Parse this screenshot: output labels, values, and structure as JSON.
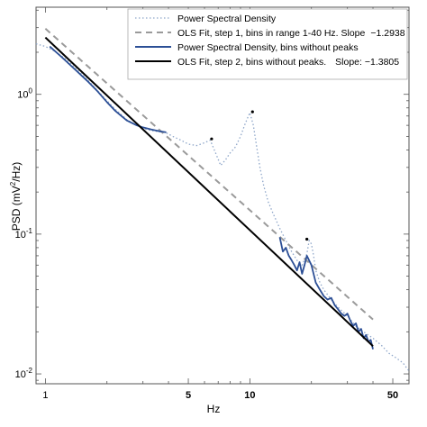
{
  "chart_data": {
    "type": "line",
    "xlabel": "Hz",
    "ylabel_main": "PSD (mV",
    "ylabel_sup": "2",
    "ylabel_end": "/Hz)",
    "x_scale": "log",
    "y_scale": "log",
    "xlim": [
      0.9,
      60
    ],
    "ylim": [
      0.0085,
      4.2
    ],
    "grid": false,
    "legend_position": "top-right",
    "x_ticks": [
      {
        "value": 1,
        "label": "1"
      },
      {
        "value": 5,
        "label": "5"
      },
      {
        "value": 10,
        "label": "10"
      },
      {
        "value": 50,
        "label": "50"
      }
    ],
    "y_ticks": [
      {
        "value": 1,
        "base": "10",
        "exp": "0"
      },
      {
        "value": 0.1,
        "base": "10",
        "exp": "-1"
      },
      {
        "value": 0.01,
        "base": "10",
        "exp": "-2"
      }
    ],
    "series": [
      {
        "name": "Power Spectral Density",
        "style": "dotted",
        "color": "#8ea6c9",
        "x": [
          0.9,
          1.0,
          1.1,
          1.25,
          1.4,
          1.6,
          1.8,
          2.0,
          2.2,
          2.5,
          2.8,
          3.0,
          3.3,
          3.6,
          3.9,
          4.2,
          4.6,
          5.0,
          5.5,
          6.0,
          6.4,
          6.8,
          7.2,
          7.6,
          8.0,
          8.5,
          9.0,
          9.5,
          10.0,
          10.4,
          10.8,
          11.2,
          11.7,
          12.3,
          13.0,
          14.0,
          15.0,
          16.0,
          17.0,
          18.0,
          19.0,
          19.5,
          20.0,
          20.5,
          21.0,
          22.0,
          23.0,
          25.0,
          27.0,
          30.0,
          33.0,
          36.0,
          40.0,
          44.0,
          48.0,
          52.0,
          56.0,
          60.0
        ],
        "y": [
          2.3,
          2.2,
          2.05,
          1.8,
          1.55,
          1.28,
          1.06,
          0.9,
          0.78,
          0.66,
          0.6,
          0.57,
          0.55,
          0.54,
          0.53,
          0.5,
          0.47,
          0.44,
          0.43,
          0.45,
          0.47,
          0.38,
          0.31,
          0.34,
          0.38,
          0.42,
          0.5,
          0.62,
          0.74,
          0.6,
          0.42,
          0.3,
          0.22,
          0.17,
          0.14,
          0.11,
          0.09,
          0.075,
          0.065,
          0.06,
          0.072,
          0.09,
          0.085,
          0.07,
          0.055,
          0.045,
          0.04,
          0.034,
          0.03,
          0.026,
          0.022,
          0.02,
          0.018,
          0.016,
          0.014,
          0.013,
          0.012,
          0.0105
        ]
      },
      {
        "name": "OLS Fit, step 1, bins in range 1-40 Hz. Slope",
        "slope_label": "−1.2938",
        "style": "dashed",
        "color": "#9a9a9a",
        "x": [
          1.0,
          40.0
        ],
        "y": [
          2.95,
          0.0245
        ]
      },
      {
        "name": "Power Spectral Density, bins without peaks",
        "style": "solid",
        "color": "#2c4f96",
        "segments": [
          {
            "x": [
              1.05,
              1.2,
              1.4,
              1.6,
              1.8,
              2.0,
              2.2,
              2.5,
              2.8,
              3.0,
              3.3,
              3.6,
              3.9
            ],
            "y": [
              2.2,
              1.85,
              1.5,
              1.25,
              1.05,
              0.88,
              0.76,
              0.65,
              0.6,
              0.58,
              0.56,
              0.545,
              0.535
            ]
          },
          {
            "x": [
              14.0,
              14.5,
              15.0,
              15.5,
              16.0,
              16.5,
              17.0,
              17.5,
              18.0,
              18.5,
              19.0,
              20.0,
              21.0,
              22.0,
              23.0,
              24.0,
              25.0,
              26.0,
              27.0,
              28.0,
              29.0,
              30.0,
              31.0,
              32.0,
              33.0,
              34.0,
              35.0,
              36.0,
              37.0,
              38.0,
              39.0,
              40.0
            ],
            "y": [
              0.095,
              0.075,
              0.08,
              0.07,
              0.065,
              0.06,
              0.055,
              0.063,
              0.052,
              0.06,
              0.07,
              0.06,
              0.045,
              0.04,
              0.036,
              0.034,
              0.035,
              0.031,
              0.029,
              0.027,
              0.026,
              0.027,
              0.024,
              0.022,
              0.023,
              0.02,
              0.021,
              0.018,
              0.019,
              0.017,
              0.0175,
              0.015
            ]
          }
        ]
      },
      {
        "name": "OLS Fit, step 2, bins without peaks.",
        "slope_label": "Slope:  −1.3805",
        "style": "solid",
        "color": "#000000",
        "x": [
          1.0,
          40.0
        ],
        "y": [
          2.55,
          0.0158
        ]
      }
    ],
    "peak_markers": {
      "color": "#000000",
      "x": [
        6.5,
        10.3,
        19.0
      ],
      "y": [
        0.48,
        0.75,
        0.092
      ]
    }
  }
}
